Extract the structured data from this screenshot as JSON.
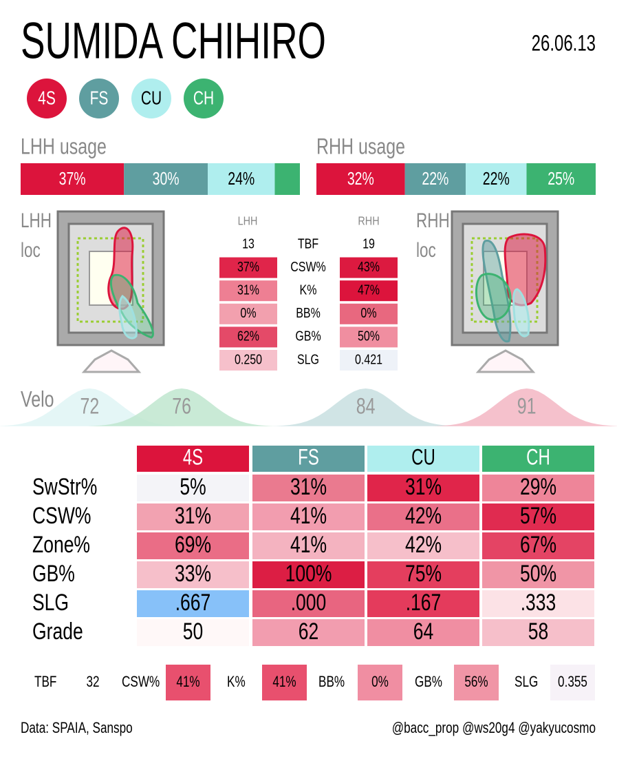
{
  "title": "SUMIDA CHIHIRO",
  "date": "26.06.13",
  "pitches": [
    {
      "name": "4S",
      "color": "#dc143c",
      "text_color": "#ffffff"
    },
    {
      "name": "FS",
      "color": "#5f9ea0",
      "text_color": "#ffffff"
    },
    {
      "name": "CU",
      "color": "#afeeee",
      "text_color": "#000000"
    },
    {
      "name": "CH",
      "color": "#3cb371",
      "text_color": "#ffffff"
    }
  ],
  "usage": [
    {
      "label": "LHH usage",
      "values": [
        37,
        30,
        24,
        9
      ],
      "value_labels": [
        "37%",
        "30%",
        "24%",
        null
      ]
    },
    {
      "label": "RHH usage",
      "values": [
        32,
        22,
        22,
        25
      ],
      "value_labels": [
        "32%",
        "22%",
        "22%",
        "25%"
      ]
    }
  ],
  "loc": [
    {
      "side": "LHH",
      "label": "loc"
    },
    {
      "side": "RHH",
      "label": "loc"
    }
  ],
  "split": {
    "columns": [
      "LHH",
      "RHH"
    ],
    "rows": [
      {
        "label": "TBF",
        "lhh": "13",
        "rhh": "19",
        "lhh_color": null,
        "rhh_color": null
      },
      {
        "label": "CSW%",
        "lhh": "37%",
        "rhh": "43%",
        "lhh_color": "#e0254a",
        "rhh_color": "#dc1a40"
      },
      {
        "label": "K%",
        "lhh": "31%",
        "rhh": "47%",
        "lhh_color": "#ee7f93",
        "rhh_color": "#dc143c"
      },
      {
        "label": "BB%",
        "lhh": "0%",
        "rhh": "0%",
        "lhh_color": "#f2a0ae",
        "rhh_color": "#e8687f"
      },
      {
        "label": "GB%",
        "lhh": "62%",
        "rhh": "50%",
        "lhh_color": "#e44a68",
        "rhh_color": "#f08ea0"
      },
      {
        "label": "SLG",
        "lhh": "0.250",
        "rhh": "0.421",
        "lhh_color": "#f6c0cb",
        "rhh_color": "#eef2f8"
      }
    ]
  },
  "velo": {
    "label": "Velo",
    "xlim": [
      69,
      94
    ],
    "values": [
      72,
      76,
      84,
      91
    ],
    "colors": [
      "#dff5f5",
      "#bfe6cf",
      "#c8dfe0",
      "#f3b6c3"
    ]
  },
  "pitch_table": {
    "rows": [
      {
        "label": "SwStr%",
        "cells": [
          "5%",
          "31%",
          "31%",
          "29%"
        ],
        "colors": [
          "#f4f4f8",
          "#ea7a8f",
          "#e0254a",
          "#ee8599"
        ]
      },
      {
        "label": "CSW%",
        "cells": [
          "31%",
          "41%",
          "42%",
          "57%"
        ],
        "colors": [
          "#f2a2b1",
          "#f29daf",
          "#ea7089",
          "#e02b50"
        ]
      },
      {
        "label": "Zone%",
        "cells": [
          "69%",
          "41%",
          "42%",
          "67%"
        ],
        "colors": [
          "#ea6d86",
          "#f4b3c0",
          "#f6bfca",
          "#e44464"
        ]
      },
      {
        "label": "GB%",
        "cells": [
          "33%",
          "100%",
          "75%",
          "50%"
        ],
        "colors": [
          "#f6bfca",
          "#dc1e44",
          "#e43e5e",
          "#f095a6"
        ]
      },
      {
        "label": "SLG",
        "cells": [
          ".667",
          ".000",
          ".167",
          ".333"
        ],
        "colors": [
          "#87c1f9",
          "#e86580",
          "#e43b5c",
          "#fce2e6"
        ]
      },
      {
        "label": "Grade",
        "cells": [
          "50",
          "62",
          "64",
          "58"
        ],
        "colors": [
          "#fff8f8",
          "#f29daf",
          "#f08ea2",
          "#f6bfca"
        ]
      }
    ]
  },
  "summary": [
    {
      "label": "TBF",
      "value": "32",
      "color": null
    },
    {
      "label": "CSW%",
      "value": "41%",
      "color": "#e8506e"
    },
    {
      "label": "K%",
      "value": "41%",
      "color": "#e8506e"
    },
    {
      "label": "BB%",
      "value": "0%",
      "color": "#f08ea2"
    },
    {
      "label": "GB%",
      "value": "56%",
      "color": "#f095a6"
    },
    {
      "label": "SLG",
      "value": "0.355",
      "color": "#f7f2f8"
    }
  ],
  "footer": {
    "source": "Data: SPAIA, Sanspo",
    "credits": "@bacc_prop @ws20g4 @yakyucosmo"
  }
}
